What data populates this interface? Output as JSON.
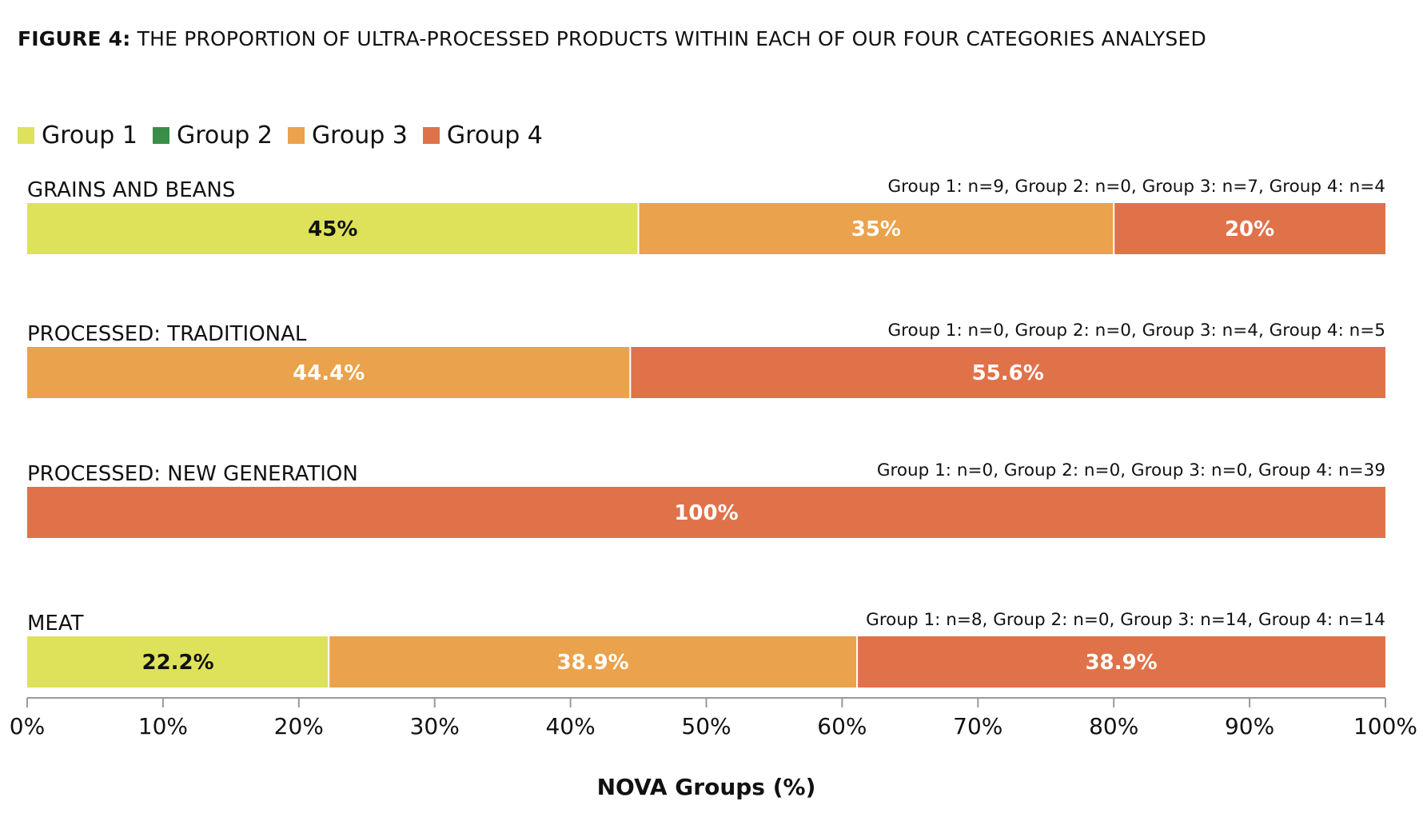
{
  "title": {
    "prefix": "FIGURE 4:",
    "text": "THE PROPORTION OF ULTRA-PROCESSED PRODUCTS WITHIN EACH OF OUR FOUR CATEGORIES ANALYSED"
  },
  "legend": [
    {
      "label": "Group 1",
      "color": "#dde25a"
    },
    {
      "label": "Group 2",
      "color": "#3a8e48"
    },
    {
      "label": "Group 3",
      "color": "#eaa24c"
    },
    {
      "label": "Group 4",
      "color": "#e07249"
    }
  ],
  "chart_data": {
    "type": "bar",
    "orientation": "horizontal",
    "stacked": true,
    "xlabel": "NOVA Groups (%)",
    "xlim": [
      0,
      100
    ],
    "xticks": [
      "0%",
      "10%",
      "20%",
      "30%",
      "40%",
      "50%",
      "60%",
      "70%",
      "80%",
      "90%",
      "100%"
    ],
    "categories": [
      {
        "name": "GRAINS AND BEANS",
        "counts": "Group 1: n=9, Group 2: n=0, Group 3: n=7, Group 4: n=4",
        "segments": [
          {
            "group": "Group 1",
            "value": 45,
            "label": "45%"
          },
          {
            "group": "Group 3",
            "value": 35,
            "label": "35%"
          },
          {
            "group": "Group 4",
            "value": 20,
            "label": "20%"
          }
        ]
      },
      {
        "name": "PROCESSED: TRADITIONAL",
        "counts": "Group 1: n=0, Group 2: n=0,  Group 3: n=4, Group 4: n=5",
        "segments": [
          {
            "group": "Group 3",
            "value": 44.4,
            "label": "44.4%"
          },
          {
            "group": "Group 4",
            "value": 55.6,
            "label": "55.6%"
          }
        ]
      },
      {
        "name": "PROCESSED: NEW GENERATION",
        "counts": "Group 1: n=0, Group 2: n=0, Group 3: n=0, Group 4: n=39",
        "segments": [
          {
            "group": "Group 4",
            "value": 100,
            "label": "100%"
          }
        ]
      },
      {
        "name": "MEAT",
        "counts": "Group 1: n=8, Group 2: n=0, Group 3: n=14, Group 4: n=14",
        "segments": [
          {
            "group": "Group 1",
            "value": 22.2,
            "label": "22.2%"
          },
          {
            "group": "Group 3",
            "value": 38.9,
            "label": "38.9%"
          },
          {
            "group": "Group 4",
            "value": 38.9,
            "label": "38.9%"
          }
        ]
      }
    ]
  }
}
